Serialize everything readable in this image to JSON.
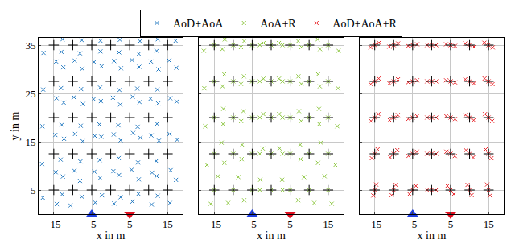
{
  "chart_data": [
    {
      "type": "scatter",
      "xlabel": "x in m",
      "ylabel": "y in m",
      "xlim": [
        -19,
        19
      ],
      "ylim": [
        0,
        36.5
      ],
      "xticks": [
        -15,
        -5,
        5,
        15
      ],
      "yticks": [
        5,
        15,
        25,
        35
      ],
      "grid": true,
      "legend": "top",
      "series": [
        {
          "name": "AoD+AoA",
          "color": "#2178c0",
          "marker": "x",
          "x": [
            -12.6,
            -17.9,
            -14.2,
            -8.1,
            -12.8,
            -10.6,
            -2.8,
            -7.6,
            -4.1,
            2.2,
            -2.3,
            0.9,
            7.4,
            2.6,
            5.7,
            12.1,
            7.3,
            10.8,
            17.2,
            12.4,
            15.6,
            -12.3,
            -18.1,
            -14.5,
            -7.4,
            -13.2,
            -9.6,
            -2.5,
            -8.0,
            -4.3,
            2.6,
            -2.9,
            0.7,
            7.8,
            2.1,
            5.5,
            12.7,
            7.2,
            10.9,
            17.5,
            12.0,
            15.8,
            -12.4,
            -18.0,
            -14.6,
            -7.3,
            -12.9,
            -9.4,
            -2.6,
            -7.9,
            -4.2,
            2.5,
            -3.0,
            0.8,
            7.6,
            2.0,
            5.9,
            12.5,
            7.1,
            10.7,
            17.4,
            12.2,
            15.5,
            -12.5,
            -17.8,
            -14.3,
            -7.5,
            -13.1,
            -9.7,
            -2.4,
            -7.8,
            -4.5,
            2.7,
            -2.8,
            0.6,
            7.5,
            2.3,
            5.8,
            12.6,
            7.0,
            10.5,
            17.3,
            12.3,
            15.7,
            -12.7,
            -17.7,
            -14.4,
            -7.6,
            -13.0,
            -9.5,
            -2.7,
            -8.1,
            -4.4,
            2.4,
            -2.7,
            0.9,
            7.7,
            2.2,
            5.6,
            12.4,
            7.4,
            10.6,
            17.1,
            12.1,
            15.4
          ],
          "y": [
            7.8,
            3.4,
            2.1,
            6.9,
            4.1,
            1.8,
            7.5,
            3.6,
            2.4,
            8.1,
            3.9,
            2.2,
            7.2,
            3.5,
            2.6,
            7.9,
            4.2,
            2.0,
            7.1,
            3.8,
            2.3,
            15.6,
            10.4,
            8.7,
            15.1,
            11.3,
            9.0,
            16.0,
            10.9,
            8.8,
            15.3,
            11.2,
            8.9,
            15.8,
            11.6,
            9.2,
            15.2,
            10.7,
            8.6,
            15.4,
            11.0,
            9.1,
            23.1,
            18.2,
            16.4,
            22.8,
            18.5,
            16.6,
            23.4,
            18.3,
            16.2,
            22.7,
            18.6,
            16.5,
            23.2,
            18.4,
            16.8,
            22.9,
            18.1,
            16.3,
            23.3,
            18.7,
            16.6,
            30.4,
            25.8,
            24.0,
            30.1,
            26.1,
            24.2,
            30.6,
            25.9,
            23.8,
            30.2,
            26.2,
            24.1,
            30.5,
            25.7,
            24.3,
            30.0,
            26.0,
            23.9,
            30.3,
            25.8,
            24.0,
            36.2,
            33.4,
            31.6,
            36.0,
            33.6,
            31.8,
            35.9,
            33.3,
            31.5,
            36.1,
            33.7,
            31.7,
            35.8,
            33.5,
            31.9,
            36.2,
            33.2,
            31.6,
            35.9,
            33.8,
            31.8
          ]
        },
        {
          "color": "#000000",
          "marker": "cross",
          "x": [
            -15,
            -10,
            -5,
            0,
            5,
            10,
            15,
            -15,
            -10,
            -5,
            0,
            5,
            10,
            15,
            -15,
            -10,
            -5,
            0,
            5,
            10,
            15,
            -15,
            -10,
            -5,
            0,
            5,
            10,
            15,
            -15,
            -10,
            -5,
            0,
            5,
            10,
            15
          ],
          "y": [
            5,
            5,
            5,
            5,
            5,
            5,
            5,
            12.5,
            12.5,
            12.5,
            12.5,
            12.5,
            12.5,
            12.5,
            20,
            20,
            20,
            20,
            20,
            20,
            20,
            27.5,
            27.5,
            27.5,
            27.5,
            27.5,
            27.5,
            27.5,
            35,
            35,
            35,
            35,
            35,
            35,
            35
          ]
        },
        {
          "color": "#1f3fe0",
          "marker": "triangle-up",
          "x": [
            -5
          ],
          "y": [
            0
          ]
        },
        {
          "color": "#e01020",
          "marker": "triangle-down",
          "x": [
            5
          ],
          "y": [
            0
          ]
        }
      ]
    },
    {
      "type": "scatter",
      "xlabel": "x in m",
      "xlim": [
        -19,
        19
      ],
      "ylim": [
        0,
        36.5
      ],
      "xticks": [
        -15,
        -5,
        5,
        15
      ],
      "yticks": [
        5,
        15,
        25,
        35
      ],
      "grid": true,
      "tick_labels": "x",
      "series": [
        {
          "name": "AoA+R",
          "color": "#8cc63f",
          "marker": "x",
          "x": [
            -15,
            -14.05,
            -15.95,
            -10,
            -8.66,
            -11.34,
            -5,
            -2.88,
            -7.12,
            0,
            3,
            -3,
            5,
            7.12,
            2.88,
            10,
            11.34,
            8.66,
            15,
            15.95,
            14.05,
            -15,
            -13.08,
            -16.92,
            -10,
            -7.66,
            -12.34,
            -5,
            -2.22,
            -7.78,
            0,
            3,
            -3,
            5,
            7.78,
            2.22,
            10,
            12.34,
            7.66,
            15,
            16.92,
            13.08,
            -15,
            -12.6,
            -17.4,
            -10,
            -7.32,
            -12.68,
            -5,
            -2.09,
            -7.91,
            0,
            3,
            -3,
            5,
            7.91,
            2.09,
            10,
            12.68,
            7.32,
            15,
            17.4,
            12.6,
            -15,
            -12.37,
            -17.63,
            -10,
            -7.18,
            -12.82,
            -5,
            -2.05,
            -7.95,
            0,
            3,
            -3,
            5,
            7.95,
            2.05,
            10,
            12.82,
            7.18,
            15,
            17.63,
            12.37,
            -15,
            -12.24,
            -17.76,
            -10,
            -7.12,
            -12.88,
            -5,
            -2.03,
            -7.97,
            0,
            3,
            -3,
            5,
            7.97,
            2.03,
            10,
            12.88,
            7.12,
            15,
            17.76,
            12.24
          ],
          "y": [
            5,
            7.85,
            2.15,
            5,
            7.68,
            2.32,
            5,
            7.12,
            2.88,
            5,
            5,
            5,
            5,
            2.88,
            7.12,
            5,
            2.32,
            7.68,
            5,
            2.15,
            7.85,
            12.5,
            14.8,
            10.2,
            12.5,
            14.38,
            10.62,
            12.5,
            13.61,
            11.39,
            12.5,
            12.5,
            12.5,
            12.5,
            11.39,
            13.61,
            12.5,
            10.62,
            14.38,
            12.5,
            10.2,
            14.8,
            20,
            21.8,
            18.2,
            20,
            21.34,
            18.66,
            20,
            20.73,
            19.27,
            20,
            20,
            20,
            20,
            19.27,
            20.73,
            20,
            18.66,
            21.34,
            20,
            18.2,
            21.8,
            27.5,
            28.94,
            26.06,
            27.5,
            28.53,
            26.47,
            27.5,
            28.04,
            26.96,
            27.5,
            27.5,
            27.5,
            27.5,
            26.96,
            28.04,
            27.5,
            26.47,
            28.53,
            27.5,
            26.06,
            28.94,
            35,
            36.18,
            33.82,
            35,
            35.82,
            34.18,
            35,
            35.42,
            34.58,
            35,
            35,
            35,
            35,
            34.58,
            35.42,
            35,
            34.18,
            35.82,
            35,
            33.82,
            36.18
          ]
        },
        {
          "color": "#000000",
          "marker": "cross",
          "x": [
            -15,
            -10,
            -5,
            0,
            5,
            10,
            15,
            -15,
            -10,
            -5,
            0,
            5,
            10,
            15,
            -15,
            -10,
            -5,
            0,
            5,
            10,
            15,
            -15,
            -10,
            -5,
            0,
            5,
            10,
            15,
            -15,
            -10,
            -5,
            0,
            5,
            10,
            15
          ],
          "y": [
            5,
            5,
            5,
            5,
            5,
            5,
            5,
            12.5,
            12.5,
            12.5,
            12.5,
            12.5,
            12.5,
            12.5,
            20,
            20,
            20,
            20,
            20,
            20,
            20,
            27.5,
            27.5,
            27.5,
            27.5,
            27.5,
            27.5,
            27.5,
            35,
            35,
            35,
            35,
            35,
            35,
            35
          ]
        },
        {
          "color": "#1f3fe0",
          "marker": "triangle-up",
          "x": [
            -5
          ],
          "y": [
            0
          ]
        },
        {
          "color": "#e01020",
          "marker": "triangle-down",
          "x": [
            5
          ],
          "y": [
            0
          ]
        }
      ]
    },
    {
      "type": "scatter",
      "xlabel": "x in m",
      "xlim": [
        -19,
        19
      ],
      "ylim": [
        0,
        36.5
      ],
      "xticks": [
        -15,
        -5,
        5,
        15
      ],
      "yticks": [
        5,
        15,
        25,
        35
      ],
      "grid": true,
      "tick_labels": "x",
      "series": [
        {
          "name": "AoD+AoA+R",
          "color": "#e8252a",
          "marker": "x",
          "x": [
            -15,
            -14.62,
            -15.38,
            -10,
            -9.46,
            -10.54,
            -5,
            -4.15,
            -5.85,
            0,
            1.2,
            -1.2,
            5,
            5.85,
            4.15,
            10,
            10.54,
            9.46,
            15,
            15.38,
            14.62,
            -15,
            -14.23,
            -15.77,
            -10,
            -9.06,
            -10.94,
            -5,
            -3.89,
            -6.11,
            0,
            1.2,
            -1.2,
            5,
            6.11,
            3.89,
            10,
            10.94,
            9.06,
            15,
            15.77,
            14.23,
            -15,
            -14.04,
            -15.96,
            -10,
            -8.93,
            -11.07,
            -5,
            -3.84,
            -6.16,
            0,
            1.2,
            -1.2,
            5,
            6.16,
            3.84,
            10,
            11.07,
            8.93,
            15,
            15.96,
            14.04,
            -15,
            -13.95,
            -16.05,
            -10,
            -8.87,
            -11.13,
            -5,
            -3.82,
            -6.18,
            0,
            1.2,
            -1.2,
            5,
            6.18,
            3.82,
            10,
            11.13,
            8.87,
            15,
            16.05,
            13.95,
            -15,
            -13.9,
            -16.1,
            -10,
            -8.85,
            -11.15,
            -5,
            -3.81,
            -6.19,
            0,
            1.2,
            -1.2,
            5,
            6.19,
            3.81,
            10,
            11.15,
            8.85,
            15,
            16.1,
            13.9
          ],
          "y": [
            5,
            6.14,
            3.86,
            5,
            6.07,
            3.93,
            5,
            5.85,
            4.15,
            5,
            5,
            5,
            5,
            4.15,
            5.85,
            5,
            3.93,
            6.07,
            5,
            3.86,
            6.14,
            12.5,
            13.42,
            11.58,
            12.5,
            13.25,
            11.75,
            12.5,
            12.95,
            12.05,
            12.5,
            12.5,
            12.5,
            12.5,
            12.05,
            12.95,
            12.5,
            11.75,
            13.25,
            12.5,
            11.58,
            13.42,
            20,
            20.72,
            19.28,
            20,
            20.54,
            19.46,
            20,
            20.29,
            19.71,
            20,
            20,
            20,
            20,
            19.71,
            20.29,
            20,
            19.46,
            20.54,
            20,
            19.28,
            20.72,
            27.5,
            28.08,
            26.92,
            27.5,
            27.91,
            27.09,
            27.5,
            27.71,
            27.29,
            27.5,
            27.5,
            27.5,
            27.5,
            27.29,
            27.71,
            27.5,
            27.09,
            27.91,
            27.5,
            26.92,
            28.08,
            35,
            35.47,
            34.53,
            35,
            35.33,
            34.67,
            35,
            35.17,
            34.83,
            35,
            35,
            35,
            35,
            34.83,
            35.17,
            35,
            34.67,
            35.33,
            35,
            34.53,
            35.47
          ]
        },
        {
          "color": "#000000",
          "marker": "cross",
          "x": [
            -15,
            -10,
            -5,
            0,
            5,
            10,
            15,
            -15,
            -10,
            -5,
            0,
            5,
            10,
            15,
            -15,
            -10,
            -5,
            0,
            5,
            10,
            15,
            -15,
            -10,
            -5,
            0,
            5,
            10,
            15,
            -15,
            -10,
            -5,
            0,
            5,
            10,
            15
          ],
          "y": [
            5,
            5,
            5,
            5,
            5,
            5,
            5,
            12.5,
            12.5,
            12.5,
            12.5,
            12.5,
            12.5,
            12.5,
            20,
            20,
            20,
            20,
            20,
            20,
            20,
            27.5,
            27.5,
            27.5,
            27.5,
            27.5,
            27.5,
            27.5,
            35,
            35,
            35,
            35,
            35,
            35,
            35
          ]
        },
        {
          "color": "#1f3fe0",
          "marker": "triangle-up",
          "x": [
            -5
          ],
          "y": [
            0
          ]
        },
        {
          "color": "#e01020",
          "marker": "triangle-down",
          "x": [
            5
          ],
          "y": [
            0
          ]
        }
      ]
    }
  ]
}
